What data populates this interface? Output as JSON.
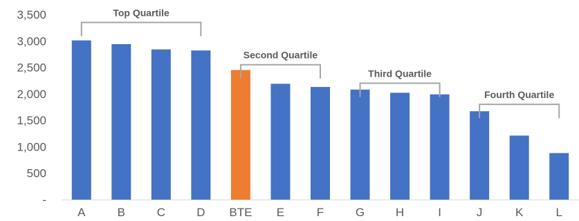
{
  "chart_data": {
    "type": "bar",
    "title": "",
    "xlabel": "",
    "ylabel": "",
    "categories": [
      "A",
      "B",
      "C",
      "D",
      "BTE",
      "E",
      "F",
      "G",
      "H",
      "I",
      "J",
      "K",
      "L"
    ],
    "values": [
      3010,
      2940,
      2840,
      2820,
      2450,
      2190,
      2130,
      2080,
      2020,
      1990,
      1670,
      1210,
      880
    ],
    "bar_colors": [
      "#4472C4",
      "#4472C4",
      "#4472C4",
      "#4472C4",
      "#ED7D31",
      "#4472C4",
      "#4472C4",
      "#4472C4",
      "#4472C4",
      "#4472C4",
      "#4472C4",
      "#4472C4",
      "#4472C4"
    ],
    "ylim": [
      0,
      3500
    ],
    "y_ticks": [
      0,
      500,
      1000,
      1500,
      2000,
      2500,
      3000,
      3500
    ],
    "y_tick_labels": [
      "-",
      "500",
      "1,000",
      "1,500",
      "2,000",
      "2,500",
      "3,000",
      "3,500"
    ],
    "grid": false,
    "legend": "none",
    "annotations": [
      {
        "label": "Top Quartile",
        "from_category": "A",
        "to_category": "D",
        "level": 3350
      },
      {
        "label": "Second Quartile",
        "from_category": "BTE",
        "to_category": "F",
        "level": 2550
      },
      {
        "label": "Third Quartile",
        "from_category": "G",
        "to_category": "I",
        "level": 2200
      },
      {
        "label": "Fourth Quartile",
        "from_category": "J",
        "to_category": "L",
        "level": 1800
      }
    ],
    "colors": {
      "primary": "#4472C4",
      "highlight": "#ED7D31",
      "bracket": "#A6A6A6",
      "axis": "#D9D9D9",
      "text": "#595959"
    }
  }
}
